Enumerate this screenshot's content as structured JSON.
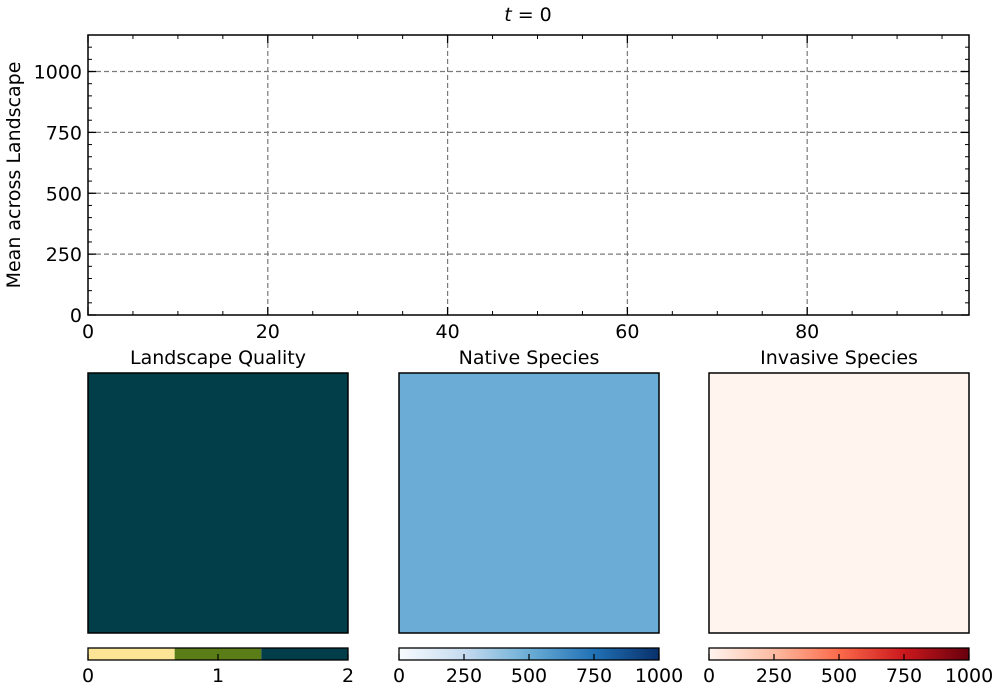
{
  "chart_data": [
    {
      "type": "line",
      "title": "t = 0",
      "ylabel": "Mean across Landscape",
      "xlabel": "",
      "xlim": [
        0,
        98
      ],
      "ylim": [
        0,
        1150
      ],
      "x_ticks": [
        0,
        20,
        40,
        60,
        80
      ],
      "y_ticks": [
        0,
        250,
        500,
        750,
        1000
      ],
      "grid": true,
      "series": []
    },
    {
      "type": "heatmap",
      "title": "Landscape Quality",
      "cell_value": 2,
      "fill_color": "#023e49",
      "colorbar": {
        "ticks": [
          0,
          1,
          2
        ],
        "range": [
          0,
          2
        ],
        "colors": [
          "#fce696",
          "#5a7d17",
          "#023e49"
        ]
      }
    },
    {
      "type": "heatmap",
      "title": "Native Species",
      "cell_value": 500,
      "fill_color": "#6aacd5",
      "colorbar": {
        "ticks": [
          0,
          250,
          500,
          750,
          1000
        ],
        "range": [
          0,
          1000
        ],
        "colors": [
          "#f7fbff",
          "#c6dbef",
          "#6baed6",
          "#2171b5",
          "#08306b"
        ]
      }
    },
    {
      "type": "heatmap",
      "title": "Invasive Species",
      "cell_value": 0,
      "fill_color": "#fff4ee",
      "colorbar": {
        "ticks": [
          0,
          250,
          500,
          750,
          1000
        ],
        "range": [
          0,
          1000
        ],
        "colors": [
          "#fff5f0",
          "#fcbba1",
          "#fb6a4a",
          "#cb181d",
          "#67000d"
        ]
      }
    }
  ]
}
